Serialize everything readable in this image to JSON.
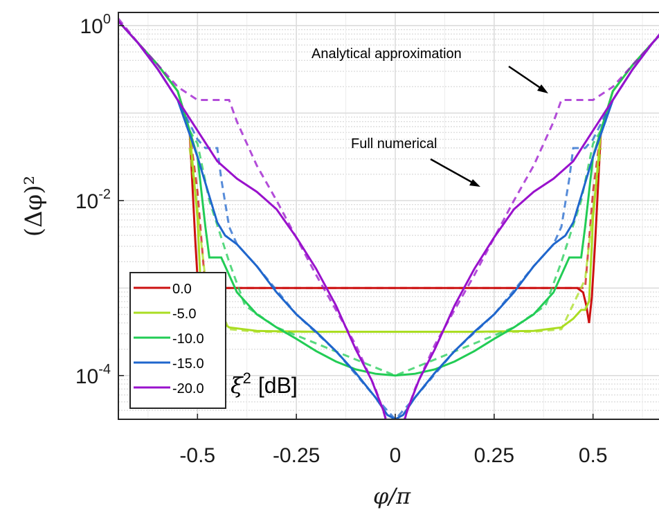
{
  "chart_data": {
    "type": "line",
    "xlabel": "φ/π",
    "ylabel": "(Δφ)²",
    "xlim": [
      -0.7,
      0.7
    ],
    "ylim_log10": [
      -4.5,
      0.15
    ],
    "yscale": "log",
    "grid": true,
    "x_ticks": [
      -0.5,
      -0.25,
      0,
      0.25,
      0.5
    ],
    "x_tick_labels": [
      "-0.5",
      "-0.25",
      "0",
      "0.25",
      "0.5"
    ],
    "y_ticks": [
      {
        "base": "10",
        "exp": "0",
        "value": 1
      },
      {
        "base": "10",
        "exp": "-2",
        "value": 0.01
      },
      {
        "base": "10",
        "exp": "-4",
        "value": 0.0001
      }
    ],
    "legend": {
      "title": "ξ² [dB]",
      "title_symbol": "ξ",
      "title_exp": "2",
      "title_unit": "[dB]",
      "placement": "bottom-left",
      "entries": [
        "0.0",
        "-5.0",
        "-10.0",
        "-15.0",
        "-20.0"
      ]
    },
    "annotations": [
      {
        "text": "Analytical approximation"
      },
      {
        "text": "Full numerical"
      }
    ],
    "series": [
      {
        "name": "0.0",
        "color": "#cc1111",
        "solid": [
          [
            0,
            -3.0
          ],
          [
            0.2,
            -3.0
          ],
          [
            0.4,
            -3.0
          ],
          [
            0.44,
            -3.0
          ],
          [
            0.46,
            -3.0
          ],
          [
            0.475,
            -3.05
          ],
          [
            0.483,
            -3.2
          ],
          [
            0.49,
            -3.4
          ],
          [
            0.497,
            -3.1
          ],
          [
            0.505,
            -2.5
          ],
          [
            0.52,
            -1.2
          ],
          [
            0.55,
            -0.75
          ],
          [
            0.6,
            -0.45
          ],
          [
            0.65,
            -0.2
          ],
          [
            0.7,
            0.05
          ]
        ],
        "dashed": [
          [
            0,
            -3.0
          ],
          [
            0.46,
            -3.0
          ],
          [
            0.48,
            -3.0
          ],
          [
            0.5,
            -1.9
          ],
          [
            0.52,
            -1.2
          ]
        ]
      },
      {
        "name": "-5.0",
        "color": "#aadd22",
        "solid": [
          [
            0,
            -3.5
          ],
          [
            0.2,
            -3.5
          ],
          [
            0.35,
            -3.49
          ],
          [
            0.42,
            -3.45
          ],
          [
            0.45,
            -3.35
          ],
          [
            0.47,
            -3.25
          ],
          [
            0.48,
            -3.25
          ],
          [
            0.49,
            -3.15
          ],
          [
            0.5,
            -2.2
          ],
          [
            0.52,
            -1.2
          ],
          [
            0.55,
            -0.75
          ],
          [
            0.6,
            -0.45
          ],
          [
            0.65,
            -0.2
          ],
          [
            0.7,
            0.05
          ]
        ],
        "dashed": [
          [
            0,
            -3.5
          ],
          [
            0.35,
            -3.5
          ],
          [
            0.42,
            -3.47
          ],
          [
            0.48,
            -2.9
          ],
          [
            0.5,
            -2.1
          ],
          [
            0.52,
            -1.4
          ]
        ]
      },
      {
        "name": "-10.0",
        "color": "#22cc55",
        "solid": [
          [
            0,
            -4.0
          ],
          [
            0.05,
            -3.98
          ],
          [
            0.1,
            -3.93
          ],
          [
            0.15,
            -3.84
          ],
          [
            0.2,
            -3.72
          ],
          [
            0.25,
            -3.58
          ],
          [
            0.3,
            -3.45
          ],
          [
            0.35,
            -3.3
          ],
          [
            0.4,
            -3.05
          ],
          [
            0.42,
            -2.85
          ],
          [
            0.44,
            -2.65
          ],
          [
            0.47,
            -2.65
          ],
          [
            0.48,
            -2.3
          ],
          [
            0.5,
            -1.5
          ],
          [
            0.52,
            -1.2
          ],
          [
            0.55,
            -0.75
          ],
          [
            0.6,
            -0.45
          ],
          [
            0.65,
            -0.2
          ],
          [
            0.7,
            0.05
          ]
        ],
        "dashed": [
          [
            0,
            -4.0
          ],
          [
            0.3,
            -3.45
          ],
          [
            0.38,
            -3.2
          ],
          [
            0.42,
            -2.7
          ],
          [
            0.47,
            -2.0
          ],
          [
            0.5,
            -1.35
          ],
          [
            0.52,
            -1.2
          ]
        ]
      },
      {
        "name": "-15.0",
        "color": "#1f66cc",
        "solid": [
          [
            0,
            -4.5
          ],
          [
            0.02,
            -4.45
          ],
          [
            0.05,
            -4.25
          ],
          [
            0.1,
            -3.97
          ],
          [
            0.15,
            -3.72
          ],
          [
            0.2,
            -3.5
          ],
          [
            0.25,
            -3.3
          ],
          [
            0.3,
            -3.05
          ],
          [
            0.35,
            -2.75
          ],
          [
            0.4,
            -2.5
          ],
          [
            0.43,
            -2.4
          ],
          [
            0.45,
            -2.25
          ],
          [
            0.47,
            -1.95
          ],
          [
            0.5,
            -1.5
          ],
          [
            0.55,
            -0.85
          ],
          [
            0.6,
            -0.5
          ],
          [
            0.65,
            -0.2
          ],
          [
            0.7,
            0.05
          ]
        ],
        "dashed": [
          [
            0,
            -4.5
          ],
          [
            0.05,
            -4.25
          ],
          [
            0.15,
            -3.72
          ],
          [
            0.25,
            -3.3
          ],
          [
            0.35,
            -2.75
          ],
          [
            0.4,
            -2.5
          ],
          [
            0.42,
            -2.3
          ],
          [
            0.44,
            -1.75
          ],
          [
            0.45,
            -1.4
          ],
          [
            0.48,
            -1.4
          ],
          [
            0.5,
            -1.3
          ],
          [
            0.55,
            -0.85
          ],
          [
            0.6,
            -0.5
          ],
          [
            0.65,
            -0.2
          ],
          [
            0.7,
            0.05
          ]
        ]
      },
      {
        "name": "-20.0",
        "color": "#9911cc",
        "solid": [
          [
            0,
            -5.0
          ],
          [
            0.01,
            -4.75
          ],
          [
            0.03,
            -4.4
          ],
          [
            0.06,
            -4.05
          ],
          [
            0.1,
            -3.7
          ],
          [
            0.15,
            -3.2
          ],
          [
            0.2,
            -2.78
          ],
          [
            0.25,
            -2.42
          ],
          [
            0.3,
            -2.1
          ],
          [
            0.35,
            -1.9
          ],
          [
            0.4,
            -1.75
          ],
          [
            0.45,
            -1.55
          ],
          [
            0.5,
            -1.2
          ],
          [
            0.55,
            -0.85
          ],
          [
            0.6,
            -0.5
          ],
          [
            0.65,
            -0.2
          ],
          [
            0.7,
            0.05
          ]
        ],
        "dashed": [
          [
            0,
            -4.8
          ],
          [
            0.05,
            -4.15
          ],
          [
            0.1,
            -3.65
          ],
          [
            0.2,
            -2.85
          ],
          [
            0.3,
            -2.0
          ],
          [
            0.35,
            -1.6
          ],
          [
            0.4,
            -1.1
          ],
          [
            0.42,
            -0.85
          ],
          [
            0.45,
            -0.85
          ],
          [
            0.48,
            -0.85
          ],
          [
            0.5,
            -0.85
          ],
          [
            0.55,
            -0.7
          ],
          [
            0.6,
            -0.45
          ],
          [
            0.65,
            -0.2
          ],
          [
            0.7,
            0.08
          ]
        ]
      }
    ]
  }
}
